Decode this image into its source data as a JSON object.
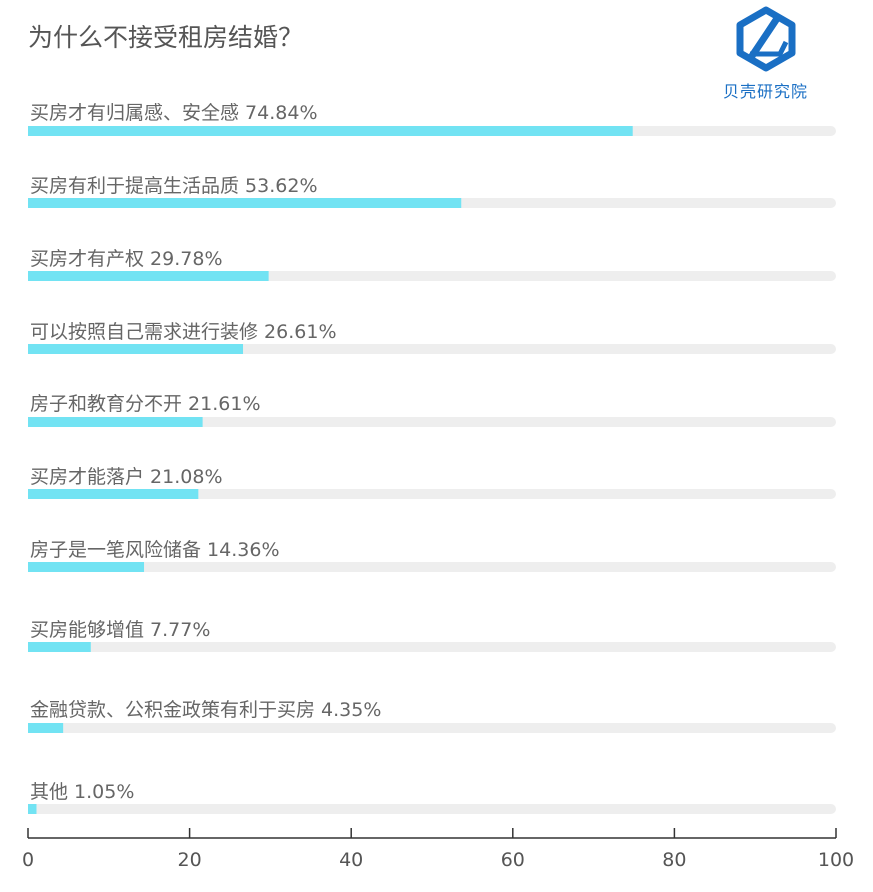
{
  "chart_data": {
    "type": "bar",
    "orientation": "horizontal",
    "title": "为什么不接受租房结婚？",
    "categories": [
      "买房才有归属感、安全感",
      "买房有利于提高生活品质",
      "买房才有产权",
      "可以按照自己需求进行装修",
      "房子和教育分不开",
      "买房才能落户",
      "房子是一笔风险储备",
      "买房能够增值",
      "金融贷款、公积金政策有利于买房",
      "其他"
    ],
    "values": [
      74.84,
      53.62,
      29.78,
      26.61,
      21.61,
      21.08,
      14.36,
      7.77,
      4.35,
      1.05
    ],
    "value_labels": [
      "74.84%",
      "53.62%",
      "29.78%",
      "26.61%",
      "21.61%",
      "21.08%",
      "14.36%",
      "7.77%",
      "4.35%",
      "1.05%"
    ],
    "xlim": [
      0,
      100
    ],
    "xticks": [
      0,
      20,
      40,
      60,
      80,
      100
    ],
    "bar_color": "#72e3f3",
    "track_color": "#eeeeee",
    "grid": false,
    "legend": "none"
  },
  "logo": {
    "text": "贝壳研究院",
    "color": "#1a6fc4"
  }
}
